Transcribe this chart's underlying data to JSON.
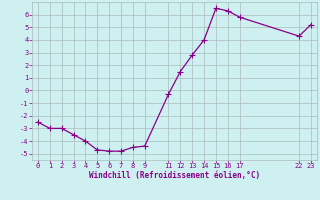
{
  "x": [
    0,
    1,
    2,
    3,
    4,
    5,
    6,
    7,
    8,
    9,
    11,
    12,
    13,
    14,
    15,
    16,
    17,
    22,
    23
  ],
  "y": [
    -2.5,
    -3.0,
    -3.0,
    -3.5,
    -4.0,
    -4.7,
    -4.8,
    -4.8,
    -4.5,
    -4.4,
    -0.3,
    1.5,
    2.8,
    4.0,
    6.5,
    6.3,
    5.8,
    4.3,
    5.2
  ],
  "xlim": [
    -0.5,
    23.5
  ],
  "ylim": [
    -5.5,
    7.0
  ],
  "xticks": [
    0,
    1,
    2,
    3,
    4,
    5,
    6,
    7,
    8,
    9,
    11,
    12,
    13,
    14,
    15,
    16,
    17,
    22,
    23
  ],
  "yticks": [
    -5,
    -4,
    -3,
    -2,
    -1,
    0,
    1,
    2,
    3,
    4,
    5,
    6
  ],
  "xlabel": "Windchill (Refroidissement éolien,°C)",
  "line_color": "#880088",
  "marker": "+",
  "bg_color": "#cff0f0",
  "grid_color": "#aabbbb",
  "tick_color": "#880088",
  "label_color": "#880088",
  "linewidth": 0.9,
  "markersize": 4.0,
  "tick_fontsize": 5.0,
  "label_fontsize": 5.5
}
